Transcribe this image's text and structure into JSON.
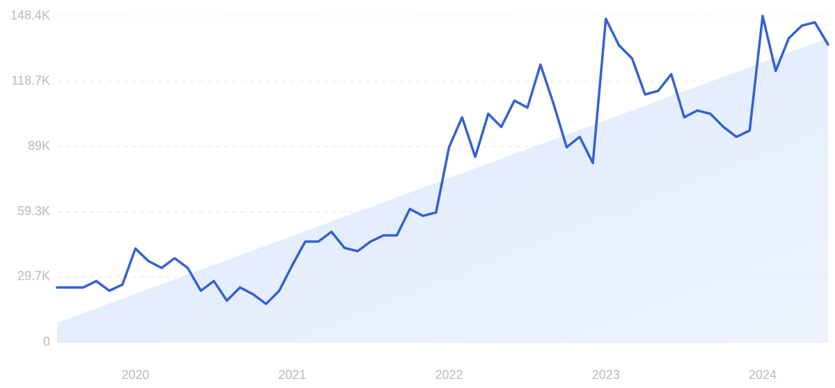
{
  "chart_data": {
    "type": "line",
    "x": [
      2019.5,
      2019.583,
      2019.667,
      2019.75,
      2019.833,
      2019.917,
      2020,
      2020.083,
      2020.167,
      2020.25,
      2020.333,
      2020.417,
      2020.5,
      2020.583,
      2020.667,
      2020.75,
      2020.833,
      2020.917,
      2021,
      2021.083,
      2021.167,
      2021.25,
      2021.333,
      2021.417,
      2021.5,
      2021.583,
      2021.667,
      2021.75,
      2021.833,
      2021.917,
      2022,
      2022.083,
      2022.167,
      2022.25,
      2022.333,
      2022.417,
      2022.5,
      2022.583,
      2022.667,
      2022.75,
      2022.833,
      2022.917,
      2023,
      2023.083,
      2023.167,
      2023.25,
      2023.333,
      2023.417,
      2023.5,
      2023.583,
      2023.667,
      2023.75,
      2023.833,
      2023.917,
      2024,
      2024.083,
      2024.167,
      2024.25,
      2024.333,
      2024.417
    ],
    "series": [
      {
        "color": "#3461d1",
        "values": [
          24900,
          24900,
          24900,
          27800,
          23400,
          26200,
          42600,
          36900,
          33800,
          38200,
          33800,
          23400,
          27800,
          18900,
          24900,
          21800,
          17400,
          23400,
          35000,
          45800,
          45800,
          50200,
          42900,
          41400,
          45800,
          48600,
          48600,
          60600,
          57500,
          59000,
          88700,
          102300,
          84300,
          103900,
          97900,
          109900,
          106700,
          126300,
          108300,
          88700,
          93400,
          81500,
          147100,
          135100,
          129100,
          112700,
          114300,
          121900,
          102300,
          105400,
          103900,
          97900,
          93400,
          96300,
          148400,
          123400,
          138300,
          144000,
          145500,
          135400
        ]
      }
    ],
    "trend": {
      "color": "#dce8fb",
      "x": [
        2019.5,
        2024.417
      ],
      "values": [
        8800,
        138300
      ]
    },
    "xlim": [
      2019.5,
      2024.417
    ],
    "xticks": [
      2020,
      2021,
      2022,
      2023,
      2024
    ],
    "ylim": [
      0,
      148400
    ],
    "yticks": [
      0,
      {
        "value": 29700,
        "label": "29.7K"
      },
      {
        "value": 59300,
        "label": "59.3K"
      },
      {
        "value": 89000,
        "label": "89K"
      },
      {
        "value": 118700,
        "label": "118.7K"
      },
      {
        "value": 148400,
        "label": "148.4K"
      }
    ],
    "grid": true
  }
}
